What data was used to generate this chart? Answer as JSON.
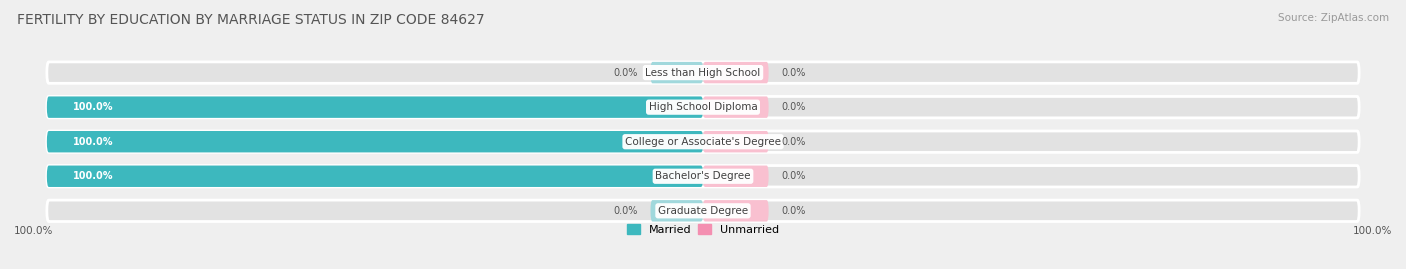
{
  "title": "FERTILITY BY EDUCATION BY MARRIAGE STATUS IN ZIP CODE 84627",
  "source": "Source: ZipAtlas.com",
  "categories": [
    "Less than High School",
    "High School Diploma",
    "College or Associate's Degree",
    "Bachelor's Degree",
    "Graduate Degree"
  ],
  "married_values": [
    0.0,
    100.0,
    100.0,
    100.0,
    0.0
  ],
  "unmarried_values": [
    0.0,
    0.0,
    0.0,
    0.0,
    0.0
  ],
  "married_color": "#3db8be",
  "married_color_zero": "#a0d8dc",
  "unmarried_color": "#f48fb1",
  "unmarried_color_zero": "#f9c0d0",
  "background_color": "#efefef",
  "bar_bg_color": "#e2e2e2",
  "title_fontsize": 10,
  "source_fontsize": 7.5,
  "label_fontsize": 7.5,
  "bar_label_fontsize": 7,
  "legend_fontsize": 8,
  "axis_label_fontsize": 7.5
}
